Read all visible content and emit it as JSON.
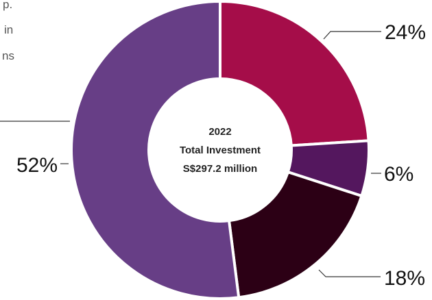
{
  "text_fragments": [
    "p.",
    "in",
    "ns"
  ],
  "center_label": {
    "year": "2022",
    "title": "Total Investment",
    "amount": "S$297.2 million"
  },
  "chart_data": {
    "type": "pie",
    "donut": true,
    "title": "",
    "legend": "none",
    "slices": [
      {
        "label": "24%",
        "value": 24,
        "color": "#a50d49"
      },
      {
        "label": "6%",
        "value": 6,
        "color": "#54175e"
      },
      {
        "label": "18%",
        "value": 18,
        "color": "#2c0015"
      },
      {
        "label": "52%",
        "value": 52,
        "color": "#673e86"
      }
    ]
  }
}
